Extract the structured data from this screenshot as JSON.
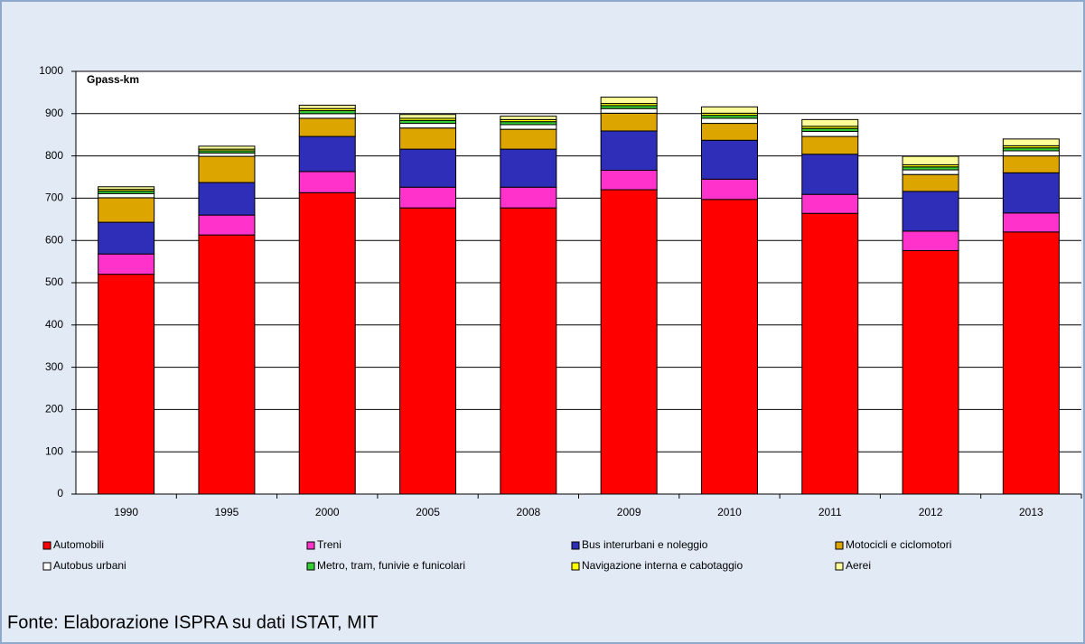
{
  "chart_data": {
    "type": "stacked_bar",
    "y_label": "Gpass-km",
    "source": "Fonte: Elaborazione ISPRA su dati ISTAT, MIT",
    "categories": [
      "1990",
      "1995",
      "2000",
      "2005",
      "2008",
      "2009",
      "2010",
      "2011",
      "2012",
      "2013"
    ],
    "series": [
      {
        "name": "Automobili",
        "color": "#ff0000",
        "values": [
          520,
          613,
          713,
          677,
          677,
          720,
          697,
          664,
          576,
          620
        ]
      },
      {
        "name": "Treni",
        "color": "#ff33cc",
        "values": [
          48,
          47,
          50,
          49,
          49,
          46,
          48,
          45,
          46,
          45
        ]
      },
      {
        "name": "Bus interurbani e noleggio",
        "color": "#2e2eb8",
        "values": [
          75,
          77,
          83,
          90,
          90,
          93,
          92,
          95,
          94,
          95
        ]
      },
      {
        "name": "Motocicli e ciclomotori",
        "color": "#dda500",
        "values": [
          58,
          62,
          43,
          50,
          47,
          42,
          40,
          42,
          40,
          40
        ]
      },
      {
        "name": "Autobus urbani",
        "color": "#ffffff",
        "values": [
          10,
          8,
          11,
          11,
          11,
          11,
          12,
          12,
          11,
          12
        ]
      },
      {
        "name": "Metro, tram, funivie e funicolari",
        "color": "#33cc33",
        "values": [
          6,
          5,
          7,
          7,
          7,
          7,
          7,
          7,
          7,
          7
        ]
      },
      {
        "name": "Navigazione interna e cabotaggio",
        "color": "#ffff00",
        "values": [
          4,
          4,
          5,
          5,
          5,
          5,
          5,
          5,
          5,
          5
        ]
      },
      {
        "name": "Aerei",
        "color": "#ffff99",
        "values": [
          6,
          7,
          8,
          9,
          8,
          15,
          15,
          16,
          20,
          16
        ]
      }
    ],
    "ylim": [
      0,
      1000
    ],
    "yticks": [
      0,
      100,
      200,
      300,
      400,
      500,
      600,
      700,
      800,
      900,
      1000
    ],
    "grid": true
  }
}
